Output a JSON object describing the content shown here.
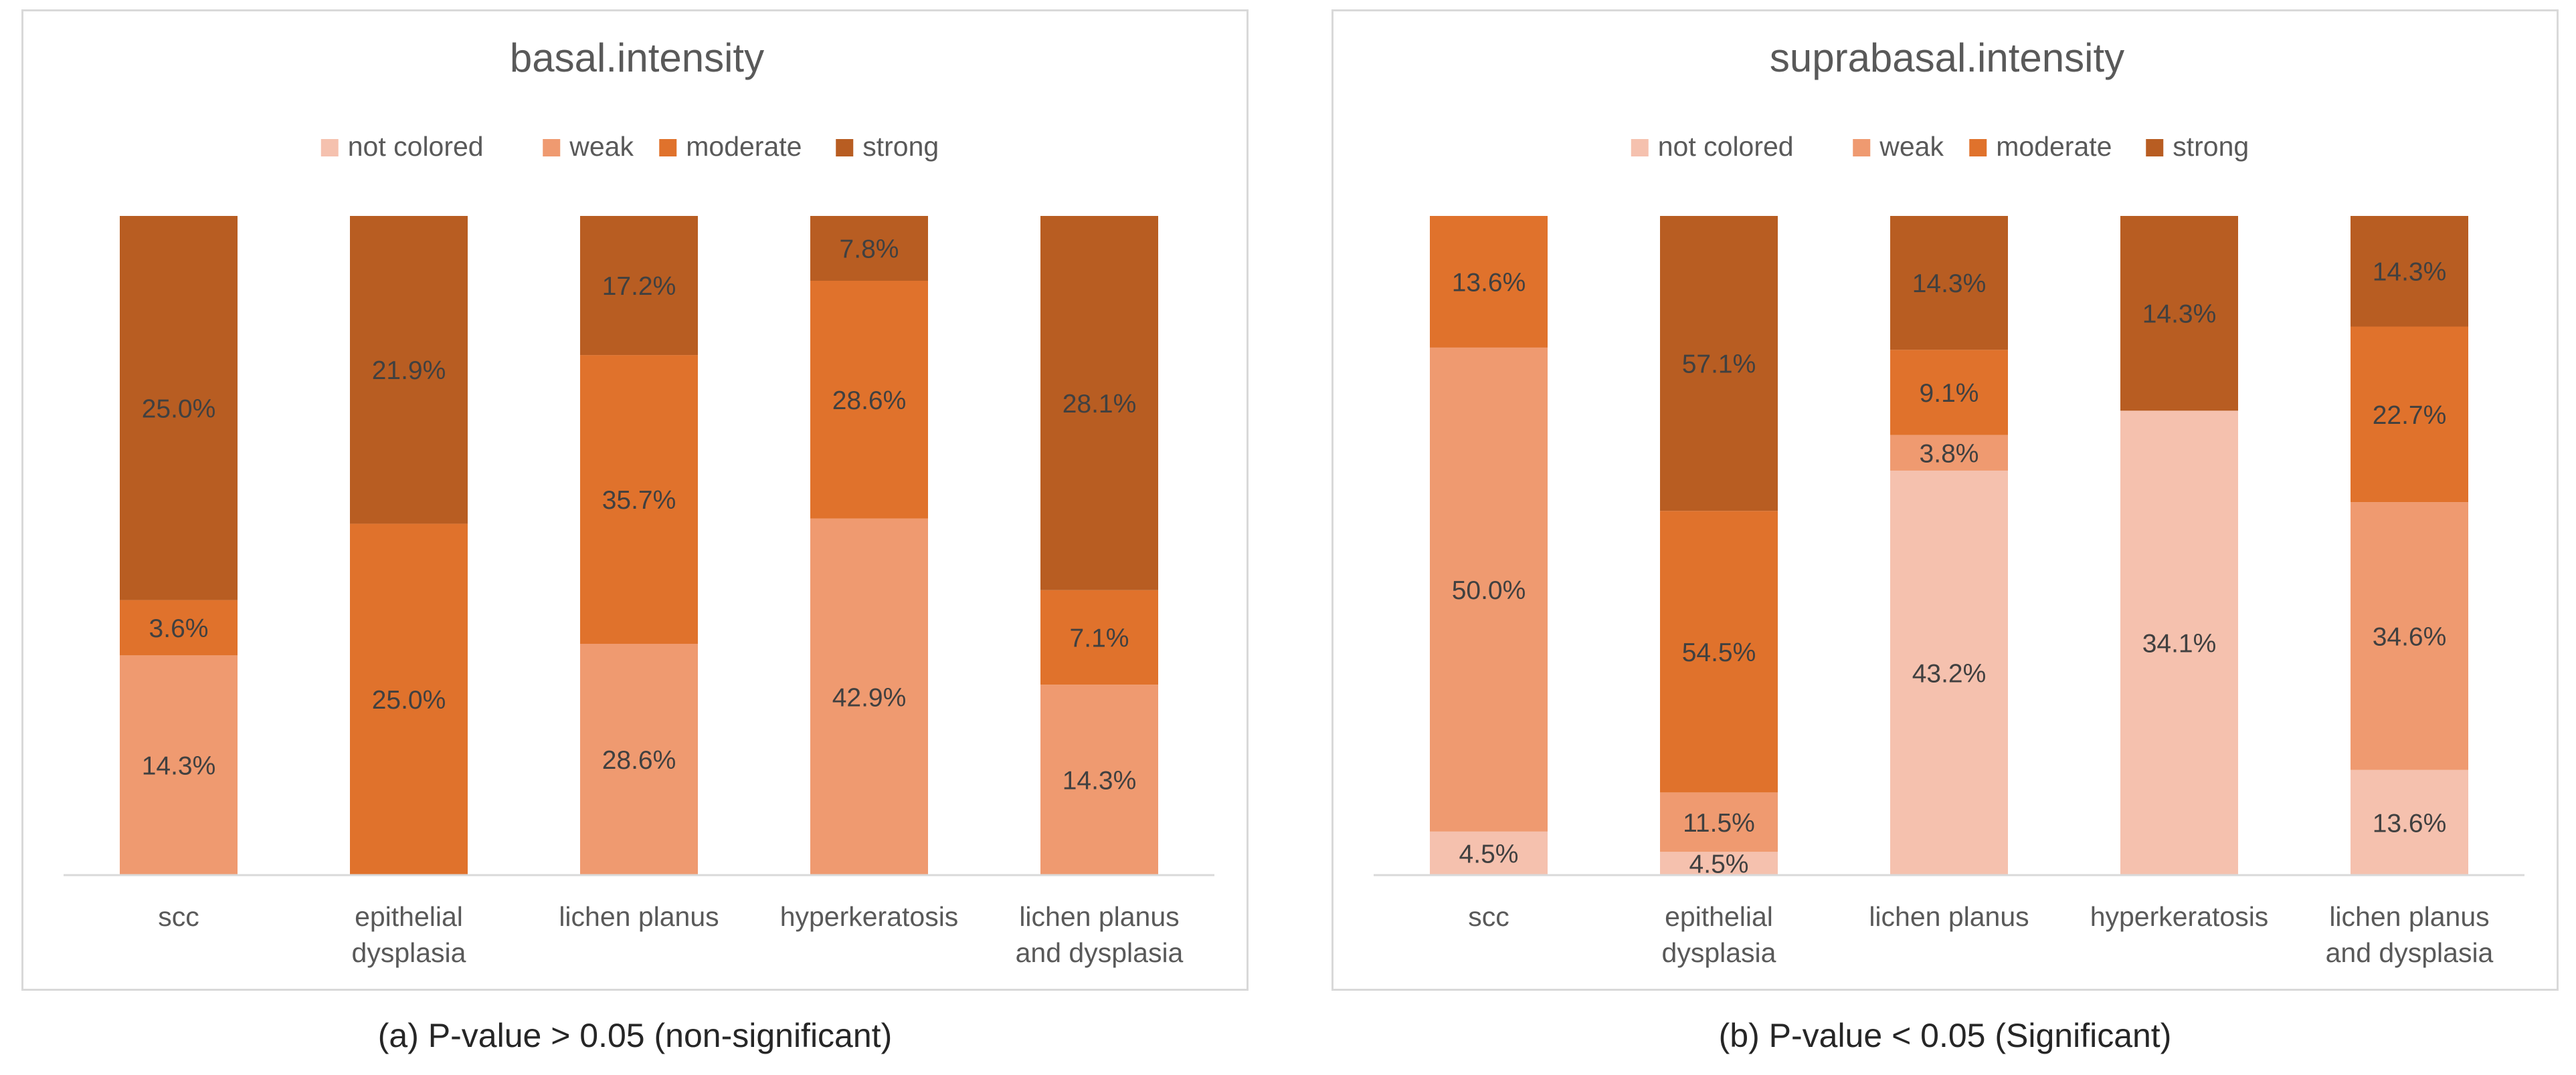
{
  "colors": {
    "not colored": "#F5C1AE",
    "weak": "#EF9A70",
    "moderate": "#E0722C",
    "strong": "#B85D22"
  },
  "captions": {
    "a": "(a) P-value > 0.05 (non-significant)",
    "b": "(b) P-value < 0.05 (Significant)"
  },
  "chart_data": [
    {
      "type": "bar",
      "stacked": "100%",
      "title": "basal.intensity",
      "legend_position": "top",
      "legend": [
        "not colored",
        "weak",
        "moderate",
        "strong"
      ],
      "categories": [
        "scc",
        "epithelial dysplasia",
        "lichen planus",
        "hyperkeratosis",
        "lichen planus and dysplasia"
      ],
      "series": [
        {
          "name": "not colored",
          "values": [
            0,
            0,
            0,
            0,
            0
          ],
          "labels": [
            "",
            "",
            "",
            "",
            ""
          ]
        },
        {
          "name": "weak",
          "values": [
            14.3,
            0,
            28.6,
            42.9,
            14.3
          ],
          "labels": [
            "14.3%",
            "",
            "28.6%",
            "42.9%",
            "14.3%"
          ]
        },
        {
          "name": "moderate",
          "values": [
            3.6,
            25.0,
            35.7,
            28.6,
            7.1
          ],
          "labels": [
            "3.6%",
            "25.0%",
            "35.7%",
            "28.6%",
            "7.1%"
          ]
        },
        {
          "name": "strong",
          "values": [
            25.0,
            21.9,
            17.2,
            7.8,
            28.1
          ],
          "labels": [
            "25.0%",
            "21.9%",
            "17.2%",
            "7.8%",
            "28.1%"
          ]
        }
      ],
      "gridlines": false
    },
    {
      "type": "bar",
      "stacked": "100%",
      "title": "suprabasal.intensity",
      "legend_position": "top",
      "legend": [
        "not colored",
        "weak",
        "moderate",
        "strong"
      ],
      "categories": [
        "scc",
        "epithelial dysplasia",
        "lichen planus",
        "hyperkeratosis",
        "lichen planus and dysplasia"
      ],
      "series": [
        {
          "name": "not colored",
          "values": [
            4.5,
            4.5,
            43.2,
            34.1,
            13.6
          ],
          "labels": [
            "4.5%",
            "4.5%",
            "43.2%",
            "34.1%",
            "13.6%"
          ]
        },
        {
          "name": "weak",
          "values": [
            50.0,
            11.5,
            3.8,
            0,
            34.6
          ],
          "labels": [
            "50.0%",
            "11.5%",
            "3.8%",
            "",
            "34.6%"
          ]
        },
        {
          "name": "moderate",
          "values": [
            13.6,
            54.5,
            9.1,
            0,
            22.7
          ],
          "labels": [
            "13.6%",
            "54.5%",
            "9.1%",
            "",
            "22.7%"
          ]
        },
        {
          "name": "strong",
          "values": [
            0,
            57.1,
            14.3,
            14.3,
            14.3
          ],
          "labels": [
            "",
            "57.1%",
            "14.3%",
            "14.3%",
            "14.3%"
          ]
        }
      ],
      "gridlines": false
    }
  ]
}
